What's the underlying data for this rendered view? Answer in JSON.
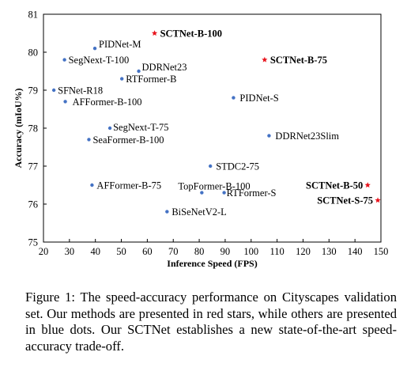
{
  "chart_data": {
    "type": "scatter",
    "title": "",
    "xlabel": "Inference Speed (FPS)",
    "ylabel": "Accuracy (mIoU%)",
    "xlim": [
      20,
      150
    ],
    "ylim": [
      75,
      81
    ],
    "xticks": [
      20,
      30,
      40,
      50,
      60,
      70,
      80,
      90,
      100,
      110,
      120,
      130,
      140,
      150
    ],
    "yticks": [
      75,
      76,
      77,
      78,
      79,
      80,
      81
    ],
    "grid": false,
    "legend": "none",
    "series": [
      {
        "style": "red-star",
        "color": "#e8141d",
        "points": [
          {
            "label": "SCTNet-B-100",
            "x": 62.8,
            "y": 80.5
          },
          {
            "label": "SCTNet-B-75",
            "x": 105.2,
            "y": 79.8
          },
          {
            "label": "SCTNet-B-50",
            "x": 144.9,
            "y": 76.5
          },
          {
            "label": "SCTNet-S-75",
            "x": 148.8,
            "y": 76.1
          }
        ]
      },
      {
        "style": "blue-dot",
        "color": "#4472c4",
        "points": [
          {
            "label": "PIDNet-M",
            "x": 39.8,
            "y": 80.1
          },
          {
            "label": "SegNext-T-100",
            "x": 28.1,
            "y": 79.8
          },
          {
            "label": "DDRNet23",
            "x": 56.7,
            "y": 79.5
          },
          {
            "label": "RTFormer-B",
            "x": 50.2,
            "y": 79.3
          },
          {
            "label": "SFNet-R18",
            "x": 24.0,
            "y": 79.0
          },
          {
            "label": "AFFormer-B-100",
            "x": 28.4,
            "y": 78.7
          },
          {
            "label": "PIDNet-S",
            "x": 93.2,
            "y": 78.8
          },
          {
            "label": "SegNext-T-75",
            "x": 45.6,
            "y": 78.0
          },
          {
            "label": "SeaFormer-B-100",
            "x": 37.5,
            "y": 77.7
          },
          {
            "label": "DDRNet23Slim",
            "x": 106.9,
            "y": 77.8
          },
          {
            "label": "STDC2-75",
            "x": 84.3,
            "y": 77.0
          },
          {
            "label": "AFFormer-B-75",
            "x": 38.7,
            "y": 76.5
          },
          {
            "label": "TopFormer-B-100",
            "x": 81.0,
            "y": 76.3
          },
          {
            "label": "RTFormer-S",
            "x": 89.6,
            "y": 76.3
          },
          {
            "label": "BiSeNetV2-L",
            "x": 67.6,
            "y": 75.8
          }
        ]
      }
    ]
  },
  "caption": "Figure 1: The speed-accuracy performance on Cityscapes validation set. Our methods are presented in red stars, while others are presented in blue dots. Our SCTNet establishes a new state-of-the-art speed-accuracy trade-off."
}
